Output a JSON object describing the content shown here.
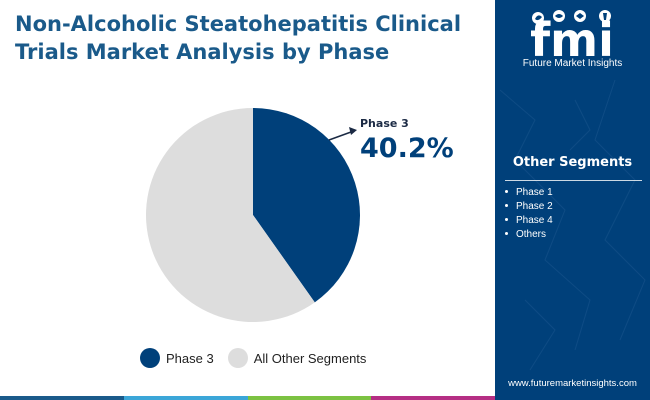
{
  "header": {
    "title": "Non-Alcoholic Steatohepatitis Clinical Trials Market Analysis by Phase"
  },
  "brand": {
    "logo_letters": "fmi",
    "name": "Future Market Insights",
    "website": "www.futuremarketinsights.com",
    "panel_color": "#00407a"
  },
  "sidebar": {
    "title": "Other Segments",
    "items": [
      "Phase 1",
      "Phase 2",
      "Phase 4",
      "Others"
    ]
  },
  "callout": {
    "label": "Phase 3",
    "value": "40.2%"
  },
  "chart_data": {
    "type": "pie",
    "categories": [
      "Phase 3",
      "All Other Segments"
    ],
    "values": [
      40.2,
      59.8
    ],
    "colors": [
      "#00407a",
      "#dddddd"
    ],
    "legend": "bottom"
  },
  "bottom_bar_colors": [
    "#1a5a8a",
    "#3ba6d8",
    "#7cc242",
    "#b52e84"
  ]
}
